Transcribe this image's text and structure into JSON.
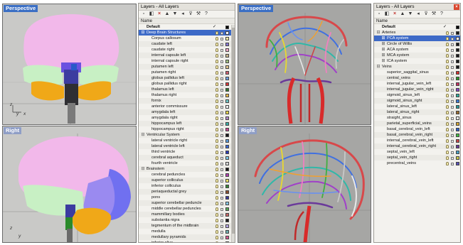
{
  "viewports": {
    "top_left": {
      "title": "Perspective",
      "axis_a": "z",
      "axis_b": "y",
      "axis_c": "x"
    },
    "bottom_left": {
      "title": "Right",
      "axis_a": "z",
      "axis_b": "y"
    },
    "top_right": {
      "title": "Perspective"
    },
    "bottom_right": {
      "title": "Right"
    }
  },
  "panel1": {
    "title": "Layers - All Layers",
    "close": "×",
    "column_header": "Name",
    "toolbar_icons": [
      "new-layer-icon",
      "new-sublayer-icon",
      "delete-icon",
      "move-up-icon",
      "move-down-icon",
      "move-to-parent-icon",
      "filter-icon",
      "tools-icon",
      "help-icon"
    ],
    "toolbar_glyphs": [
      "▫",
      "◧",
      "×",
      "▲",
      "▼",
      "◂",
      "⊽",
      "⚒",
      "?"
    ],
    "rows": [
      {
        "label": "Default",
        "level": 0,
        "bold": true,
        "current": "✓",
        "color": "#000000"
      },
      {
        "label": "Deep Brain Structures",
        "level": 0,
        "expander": "⊟",
        "selected": true,
        "color": "#ffffff"
      },
      {
        "label": "Corpus callosum",
        "level": 1,
        "color": "#f1e9a0"
      },
      {
        "label": "caudate left",
        "level": 1,
        "color": "#8a7ad8"
      },
      {
        "label": "caudate right",
        "level": 1,
        "color": "#f4a9c8"
      },
      {
        "label": "internal capsule left",
        "level": 1,
        "color": "#c9b68d"
      },
      {
        "label": "internal capsule right",
        "level": 1,
        "color": "#a0c080"
      },
      {
        "label": "putamen left",
        "level": 1,
        "color": "#e2c48a"
      },
      {
        "label": "putamen right",
        "level": 1,
        "color": "#d06070"
      },
      {
        "label": "globus pallidus left",
        "level": 1,
        "color": "#6fa0e0"
      },
      {
        "label": "globus pallidus right",
        "level": 1,
        "color": "#d83a3a"
      },
      {
        "label": "thalamus left",
        "level": 1,
        "color": "#2f7a2f"
      },
      {
        "label": "thalamus right",
        "level": 1,
        "color": "#e8b84a"
      },
      {
        "label": "fornix",
        "level": 1,
        "color": "#70c8c8"
      },
      {
        "label": "anterior commissure",
        "level": 1,
        "color": "#f0f0f0"
      },
      {
        "label": "amygdala left",
        "level": 1,
        "color": "#e6d44a"
      },
      {
        "label": "amygdala right",
        "level": 1,
        "color": "#b088c8"
      },
      {
        "label": "hippocampus left",
        "level": 1,
        "color": "#3cb0a8"
      },
      {
        "label": "hippocampus right",
        "level": 1,
        "color": "#c84890"
      },
      {
        "label": "Ventricular System",
        "level": 0,
        "expander": "⊟",
        "color": "#1a1a1a"
      },
      {
        "label": "lateral ventricle right",
        "level": 1,
        "color": "#5a9ad8"
      },
      {
        "label": "lateral ventricle left",
        "level": 1,
        "color": "#3a6ad8"
      },
      {
        "label": "third ventricle",
        "level": 1,
        "color": "#2a3ab8"
      },
      {
        "label": "cerebral aqueduct",
        "level": 1,
        "color": "#7ac8e8"
      },
      {
        "label": "fourth ventricle",
        "level": 1,
        "color": "#d8d8d8"
      },
      {
        "label": "Brainstem",
        "level": 0,
        "expander": "⊟",
        "color": "#1a1a1a"
      },
      {
        "label": "cerebral peduncles",
        "level": 1,
        "color": "#b040b0"
      },
      {
        "label": "superior colliculus",
        "level": 1,
        "color": "#e8e060"
      },
      {
        "label": "inferior colliculus",
        "level": 1,
        "color": "#3a8a3a"
      },
      {
        "label": "periaqueductal grey",
        "level": 1,
        "color": "#8a5030"
      },
      {
        "label": "pons",
        "level": 1,
        "color": "#3a3a9a"
      },
      {
        "label": "superior cerebellar peduncle",
        "level": 1,
        "color": "#88c8e8"
      },
      {
        "label": "middle cerebellar peduncles",
        "level": 1,
        "color": "#58a858"
      },
      {
        "label": "mammillary bodies",
        "level": 1,
        "color": "#c86868"
      },
      {
        "label": "substantia nigra",
        "level": 1,
        "color": "#202020"
      },
      {
        "label": "tegmentum of the midbrain",
        "level": 1,
        "color": "#b8a8e8"
      },
      {
        "label": "medulla",
        "level": 1,
        "color": "#70b0b0"
      },
      {
        "label": "medullary pyramids",
        "level": 1,
        "color": "#d85890"
      },
      {
        "label": "inferior olive",
        "level": 1,
        "color": "#5858c8"
      }
    ]
  },
  "panel2": {
    "title": "Layers - All Layers",
    "close": "×",
    "column_header": "Name",
    "toolbar_icons": [
      "new-layer-icon",
      "new-sublayer-icon",
      "delete-icon",
      "move-up-icon",
      "move-down-icon",
      "move-to-parent-icon",
      "filter-icon",
      "tools-icon",
      "help-icon"
    ],
    "toolbar_glyphs": [
      "▫",
      "◧",
      "×",
      "▲",
      "▼",
      "◂",
      "⊽",
      "⚒",
      "?"
    ],
    "rows": [
      {
        "label": "Default",
        "level": 0,
        "bold": true,
        "current": "✓",
        "color": "#000000"
      },
      {
        "label": "Arteries",
        "level": 0,
        "expander": "⊟",
        "color": "#1a1a1a"
      },
      {
        "label": "PCA system",
        "level": 1,
        "expander": "⊞",
        "selected": true,
        "color": "#ffffff"
      },
      {
        "label": "Circle of Willis",
        "level": 1,
        "expander": "⊞",
        "color": "#1a1a1a"
      },
      {
        "label": "ACA system",
        "level": 1,
        "expander": "⊞",
        "color": "#1a1a1a"
      },
      {
        "label": "MCA system",
        "level": 1,
        "expander": "⊞",
        "color": "#1a1a1a"
      },
      {
        "label": "ICA system",
        "level": 1,
        "expander": "⊞",
        "color": "#1a1a1a"
      },
      {
        "label": "Veins",
        "level": 0,
        "expander": "⊟",
        "color": "#1a1a1a"
      },
      {
        "label": "superior_saggital_sinus",
        "level": 1,
        "color": "#d83030"
      },
      {
        "label": "central_veins",
        "level": 1,
        "color": "#2a9a2a"
      },
      {
        "label": "internal_jugular_vein_left",
        "level": 1,
        "color": "#c83060"
      },
      {
        "label": "internal_jugular_vein_right",
        "level": 1,
        "color": "#8a40c8"
      },
      {
        "label": "sigmoid_sinus_left",
        "level": 1,
        "color": "#30b0a0"
      },
      {
        "label": "sigmoid_sinus_right",
        "level": 1,
        "color": "#3a7ad8"
      },
      {
        "label": "lateral_sinus_left",
        "level": 1,
        "color": "#2a9a9a"
      },
      {
        "label": "lateral_sinus_right",
        "level": 1,
        "color": "#9a6a30"
      },
      {
        "label": "straight_sinus",
        "level": 1,
        "color": "#f0f0f0"
      },
      {
        "label": "parietal_superficial_veins",
        "level": 1,
        "color": "#d8a830"
      },
      {
        "label": "basal_cerebral_vein_left",
        "level": 1,
        "color": "#3060c8"
      },
      {
        "label": "basal_cerebral_vein_right",
        "level": 1,
        "color": "#40c040"
      },
      {
        "label": "internal_cerebral_vein_left",
        "level": 1,
        "color": "#c84848"
      },
      {
        "label": "internal_cerebral_vein_right",
        "level": 1,
        "color": "#6a3a9a"
      },
      {
        "label": "septal_vein_left",
        "level": 1,
        "color": "#48a0c8"
      },
      {
        "label": "septal_vein_right",
        "level": 1,
        "color": "#c8c848"
      },
      {
        "label": "precentral_veins",
        "level": 1,
        "color": "#5850b8"
      }
    ]
  }
}
